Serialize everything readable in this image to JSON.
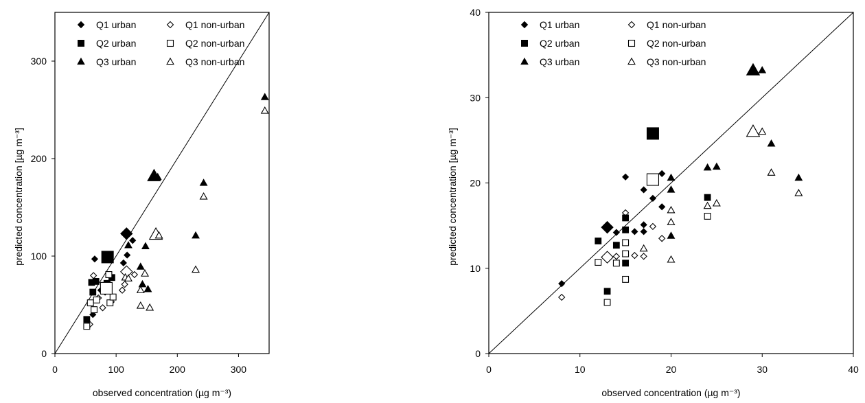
{
  "chart_data": [
    {
      "type": "scatter",
      "xlabel": "observed concentration (µg m⁻³)",
      "ylabel": "predicted concentration [µg m⁻³]",
      "xlim": [
        0,
        350
      ],
      "ylim": [
        0,
        350
      ],
      "xticks": [
        "0",
        "100",
        "200",
        "300"
      ],
      "yticks": [
        "0",
        "100",
        "200",
        "300"
      ],
      "identity_line": true,
      "legend_position": "top-left",
      "series": [
        {
          "name": "Q1 urban",
          "marker": "diamond",
          "fill": "filled",
          "points": [
            [
              62,
              40
            ],
            [
              65,
              97
            ],
            [
              75,
              65
            ],
            [
              82,
              63
            ],
            [
              88,
              72
            ],
            [
              112,
              93
            ],
            [
              118,
              101
            ],
            [
              127,
              116
            ],
            [
              117,
              123
            ]
          ],
          "large": [
            117,
            123
          ]
        },
        {
          "name": "Q1 non-urban",
          "marker": "diamond",
          "fill": "open",
          "points": [
            [
              57,
              30
            ],
            [
              63,
              80
            ],
            [
              71,
              57
            ],
            [
              78,
              47
            ],
            [
              88,
              66
            ],
            [
              92,
              53
            ],
            [
              110,
              65
            ],
            [
              114,
              71
            ],
            [
              130,
              81
            ],
            [
              117,
              84
            ]
          ],
          "large": [
            117,
            84
          ]
        },
        {
          "name": "Q2 urban",
          "marker": "square",
          "fill": "filled",
          "points": [
            [
              52,
              35
            ],
            [
              60,
              73
            ],
            [
              62,
              63
            ],
            [
              67,
              74
            ],
            [
              85,
              72
            ],
            [
              88,
              81
            ],
            [
              93,
              78
            ],
            [
              86,
              99
            ]
          ],
          "large": [
            86,
            99
          ]
        },
        {
          "name": "Q2 non-urban",
          "marker": "square",
          "fill": "open",
          "points": [
            [
              52,
              28
            ],
            [
              58,
              52
            ],
            [
              64,
              45
            ],
            [
              68,
              55
            ],
            [
              85,
              66
            ],
            [
              88,
              81
            ],
            [
              90,
              52
            ],
            [
              95,
              58
            ],
            [
              84,
              67
            ]
          ],
          "large": [
            84,
            67
          ]
        },
        {
          "name": "Q3 urban",
          "marker": "triangle",
          "fill": "filled",
          "points": [
            [
              120,
              111
            ],
            [
              140,
              89
            ],
            [
              143,
              71
            ],
            [
              148,
              110
            ],
            [
              152,
              66
            ],
            [
              162,
              182
            ],
            [
              168,
              181
            ],
            [
              230,
              121
            ],
            [
              243,
              175
            ],
            [
              343,
              263
            ]
          ],
          "large": [
            162,
            182
          ]
        },
        {
          "name": "Q3 non-urban",
          "marker": "triangle",
          "fill": "open",
          "points": [
            [
              115,
              78
            ],
            [
              140,
              65
            ],
            [
              140,
              49
            ],
            [
              147,
              82
            ],
            [
              155,
              47
            ],
            [
              165,
              122
            ],
            [
              170,
              121
            ],
            [
              230,
              86
            ],
            [
              243,
              161
            ],
            [
              343,
              249
            ],
            [
              120,
              77
            ]
          ],
          "large": [
            165,
            122
          ]
        }
      ]
    },
    {
      "type": "scatter",
      "xlabel": "observed concentration (µg m⁻³)",
      "ylabel": "predicted concentration [µg m⁻³]",
      "xlim": [
        0,
        40
      ],
      "ylim": [
        0,
        40
      ],
      "xticks": [
        "0",
        "10",
        "20",
        "30",
        "40"
      ],
      "yticks": [
        "0",
        "10",
        "20",
        "30",
        "40"
      ],
      "identity_line": true,
      "legend_position": "top-left",
      "series": [
        {
          "name": "Q1 urban",
          "marker": "diamond",
          "fill": "filled",
          "points": [
            [
              8,
              8.2
            ],
            [
              13,
              14.8
            ],
            [
              14,
              14.2
            ],
            [
              15,
              20.7
            ],
            [
              16,
              14.3
            ],
            [
              17,
              15.1
            ],
            [
              17,
              19.2
            ],
            [
              17,
              14.3
            ],
            [
              18,
              18.2
            ],
            [
              19,
              17.2
            ],
            [
              19,
              21.1
            ]
          ],
          "large": [
            13,
            14.8
          ]
        },
        {
          "name": "Q1 non-urban",
          "marker": "diamond",
          "fill": "open",
          "points": [
            [
              8,
              6.6
            ],
            [
              14,
              11.4
            ],
            [
              15,
              16.5
            ],
            [
              16,
              11.5
            ],
            [
              17,
              11.4
            ],
            [
              18,
              14.9
            ],
            [
              19,
              13.5
            ],
            [
              13,
              11.3
            ]
          ],
          "large": [
            13,
            11.3
          ]
        },
        {
          "name": "Q2 urban",
          "marker": "square",
          "fill": "filled",
          "points": [
            [
              12,
              13.2
            ],
            [
              13,
              7.3
            ],
            [
              14,
              12.7
            ],
            [
              15,
              10.6
            ],
            [
              15,
              14.5
            ],
            [
              15,
              15.9
            ],
            [
              24,
              18.3
            ],
            [
              18,
              25.8
            ]
          ],
          "large": [
            18,
            25.8
          ]
        },
        {
          "name": "Q2 non-urban",
          "marker": "square",
          "fill": "open",
          "points": [
            [
              12,
              10.7
            ],
            [
              13,
              6.0
            ],
            [
              14,
              10.6
            ],
            [
              15,
              8.7
            ],
            [
              15,
              11.7
            ],
            [
              15,
              13.0
            ],
            [
              24,
              16.1
            ],
            [
              18,
              20.4
            ]
          ],
          "large": [
            18,
            20.4
          ]
        },
        {
          "name": "Q3 urban",
          "marker": "triangle",
          "fill": "filled",
          "points": [
            [
              20,
              13.8
            ],
            [
              20,
              19.2
            ],
            [
              20,
              20.6
            ],
            [
              24,
              21.8
            ],
            [
              25,
              21.9
            ],
            [
              29,
              33.2
            ],
            [
              30,
              33.2
            ],
            [
              31,
              24.6
            ],
            [
              34,
              20.6
            ]
          ],
          "large": [
            29,
            33.2
          ]
        },
        {
          "name": "Q3 non-urban",
          "marker": "triangle",
          "fill": "open",
          "points": [
            [
              17,
              12.3
            ],
            [
              20,
              11.0
            ],
            [
              20,
              15.4
            ],
            [
              20,
              16.8
            ],
            [
              24,
              17.3
            ],
            [
              25,
              17.6
            ],
            [
              29,
              26.0
            ],
            [
              30,
              26.0
            ],
            [
              31,
              21.2
            ],
            [
              34,
              18.8
            ]
          ],
          "large": [
            29,
            26.0
          ]
        }
      ]
    }
  ]
}
